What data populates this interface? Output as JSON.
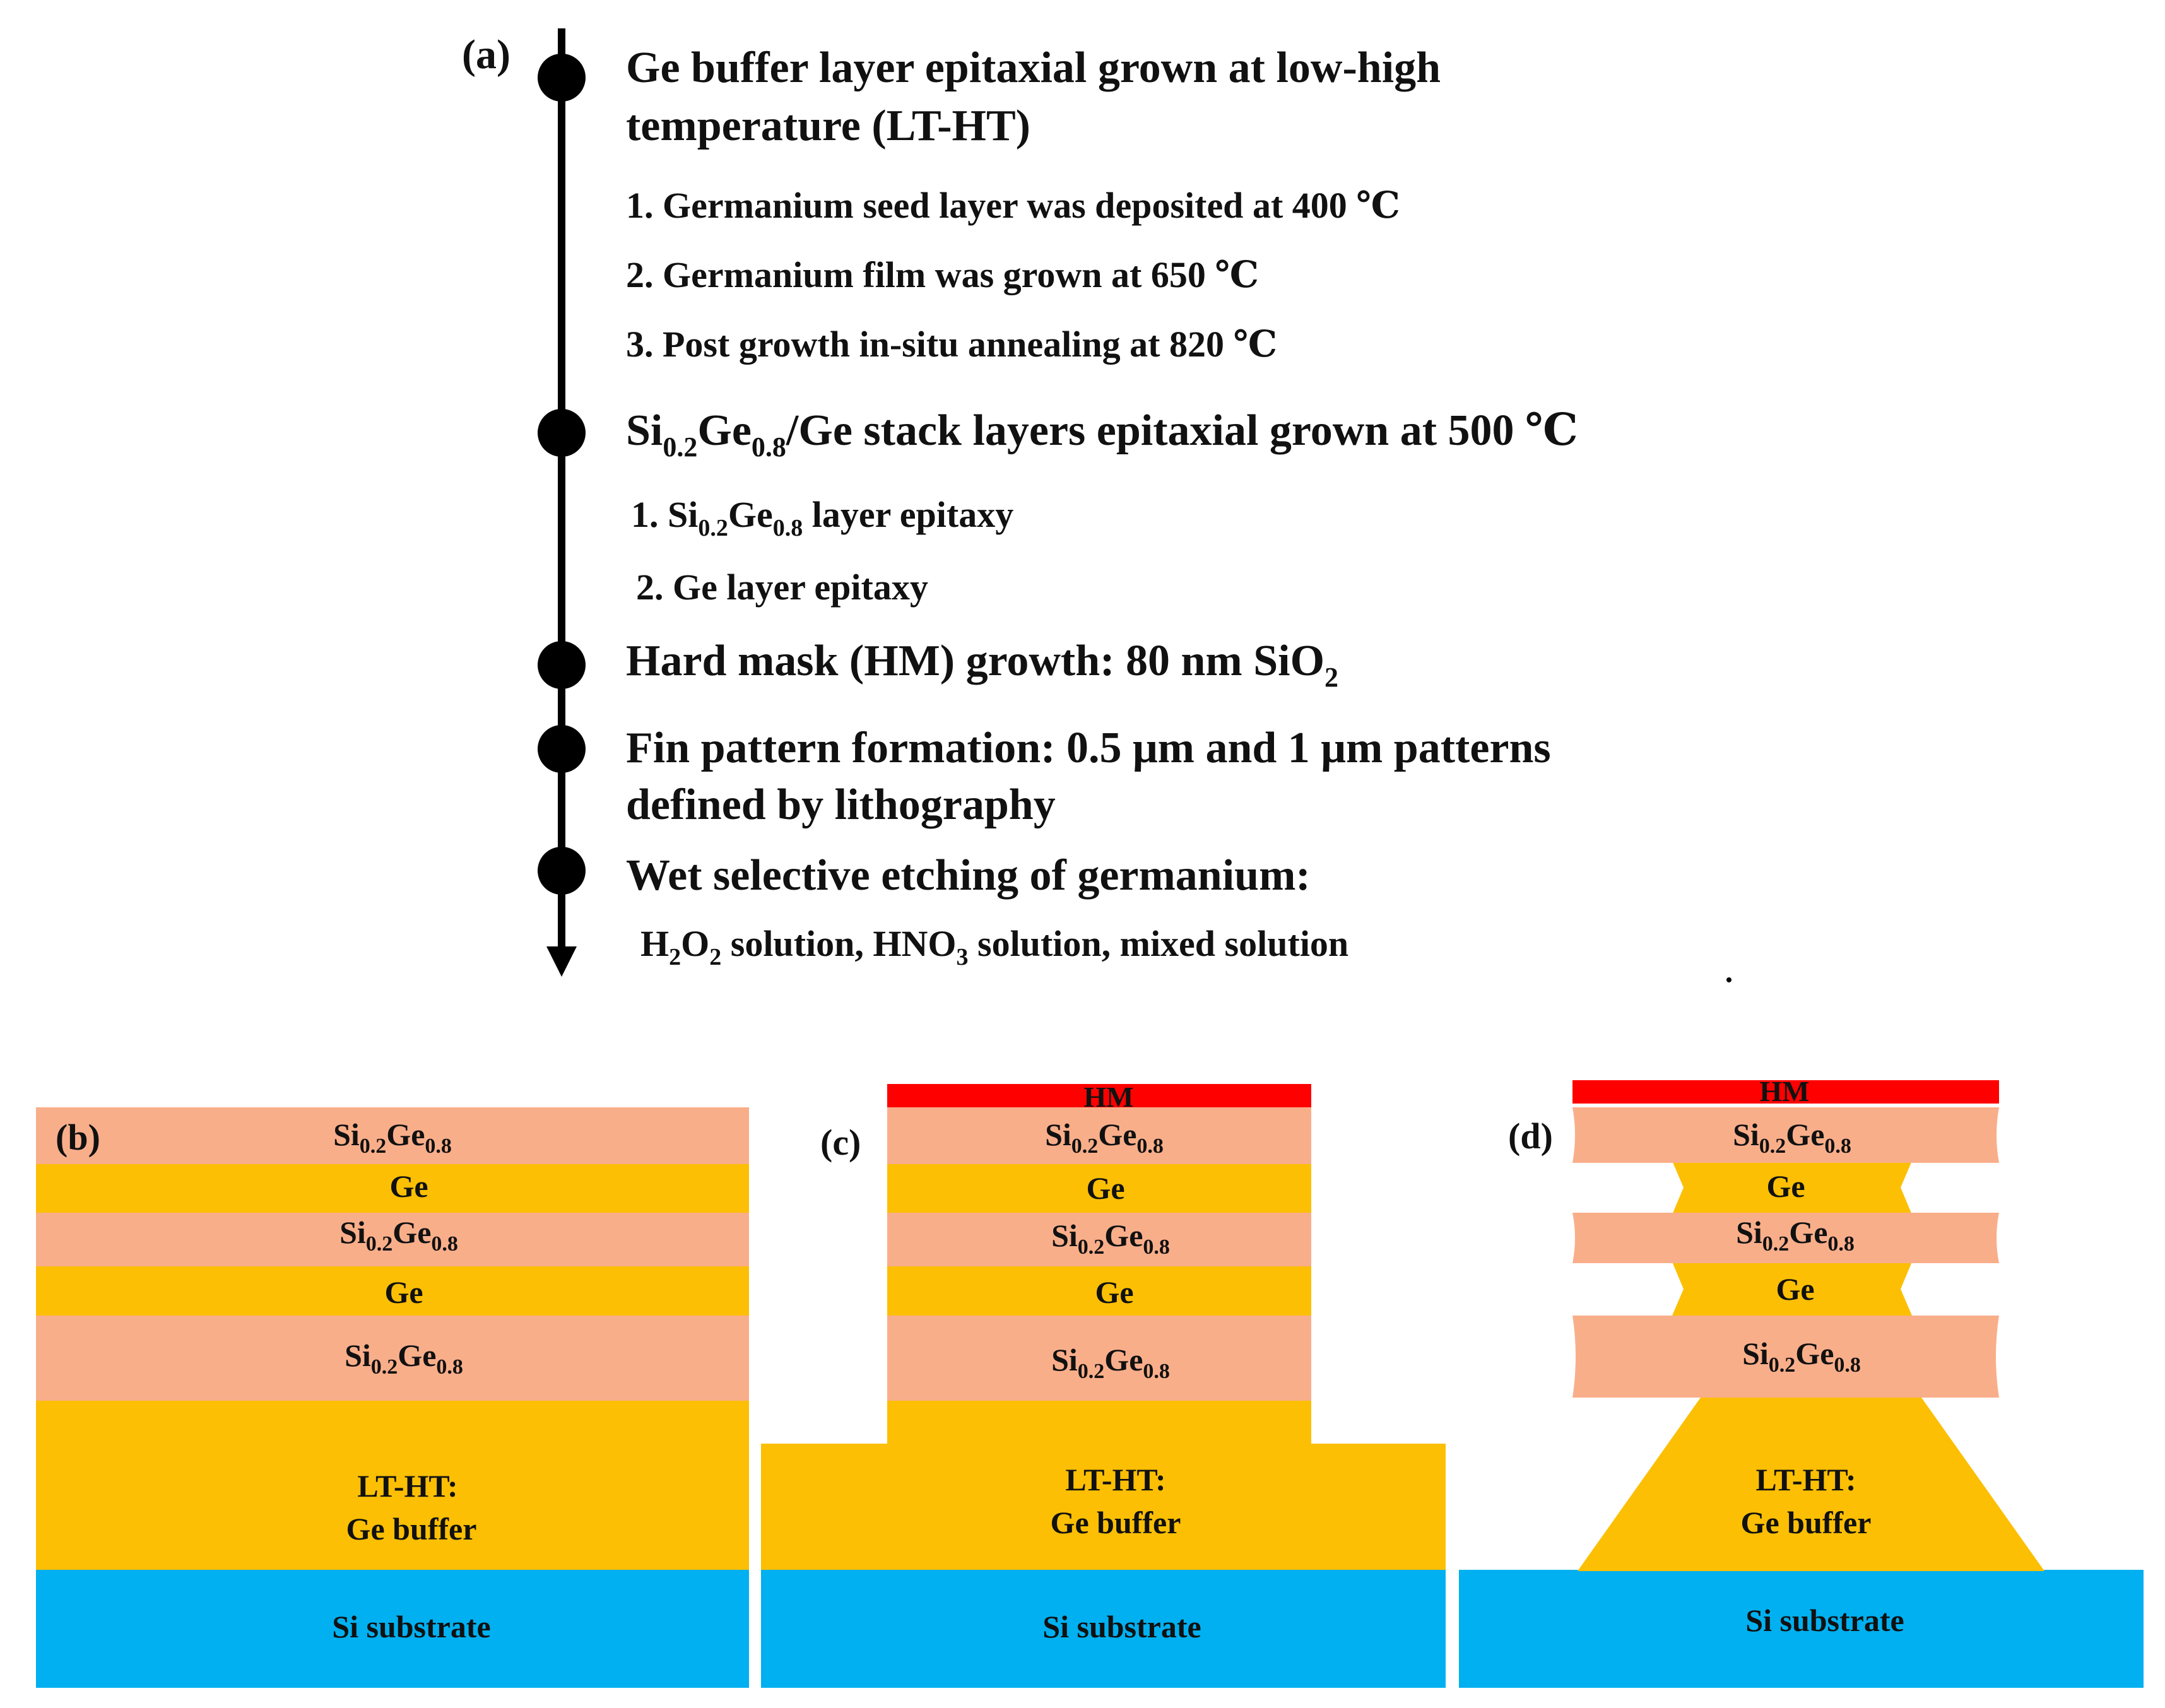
{
  "colors": {
    "sige_layer": "#F9AE8A",
    "ge_layer": "#FCBF03",
    "hard_mask": "#FF0000",
    "si_substrate": "#00B0F0",
    "text": "#111111"
  },
  "panel_a": {
    "label": "(a)",
    "steps": [
      {
        "title_lines": [
          "Ge buffer layer epitaxial grown at low-high",
          "temperature (LT-HT)"
        ],
        "substeps": [
          "1. Germanium seed layer was deposited at 400 ℃",
          "2. Germanium film was grown at 650 ℃",
          "3. Post growth in-situ annealing at 820 ℃"
        ]
      },
      {
        "title": {
          "a": "Si",
          "b": "0.2",
          "c": "Ge",
          "d": "0.8",
          "e": "/Ge stack layers epitaxial grown at 500 ℃"
        },
        "substeps": [
          {
            "a": "1. Si",
            "b": "0.2",
            "c": "Ge",
            "d": "0.8",
            "e": " layer epitaxy"
          },
          {
            "a": "2. Ge layer epitaxy"
          }
        ]
      },
      {
        "title": {
          "a": "Hard mask (HM) growth: 80 nm SiO",
          "b": "2"
        }
      },
      {
        "title_lines": [
          "Fin pattern formation: 0.5 μm and 1 μm patterns",
          "defined by lithography"
        ]
      },
      {
        "title_lines": [
          "Wet selective etching of germanium:"
        ],
        "detail": {
          "a": "H",
          "b": "2",
          "c": "O",
          "d": "2",
          "e": " solution, HNO",
          "f": "3",
          "g": " solution, mixed solution"
        }
      }
    ]
  },
  "layers": {
    "sige": {
      "base": "Si",
      "sub1": "0.2",
      "mid": "Ge",
      "sub2": "0.8"
    },
    "ge": "Ge",
    "buffer_line1": "LT-HT:",
    "buffer_line2": "Ge buffer",
    "substrate": "Si substrate",
    "hard_mask": "HM"
  },
  "panel_b": {
    "label": "(b)"
  },
  "panel_c": {
    "label": "(c)"
  },
  "panel_d": {
    "label": "(d)"
  }
}
